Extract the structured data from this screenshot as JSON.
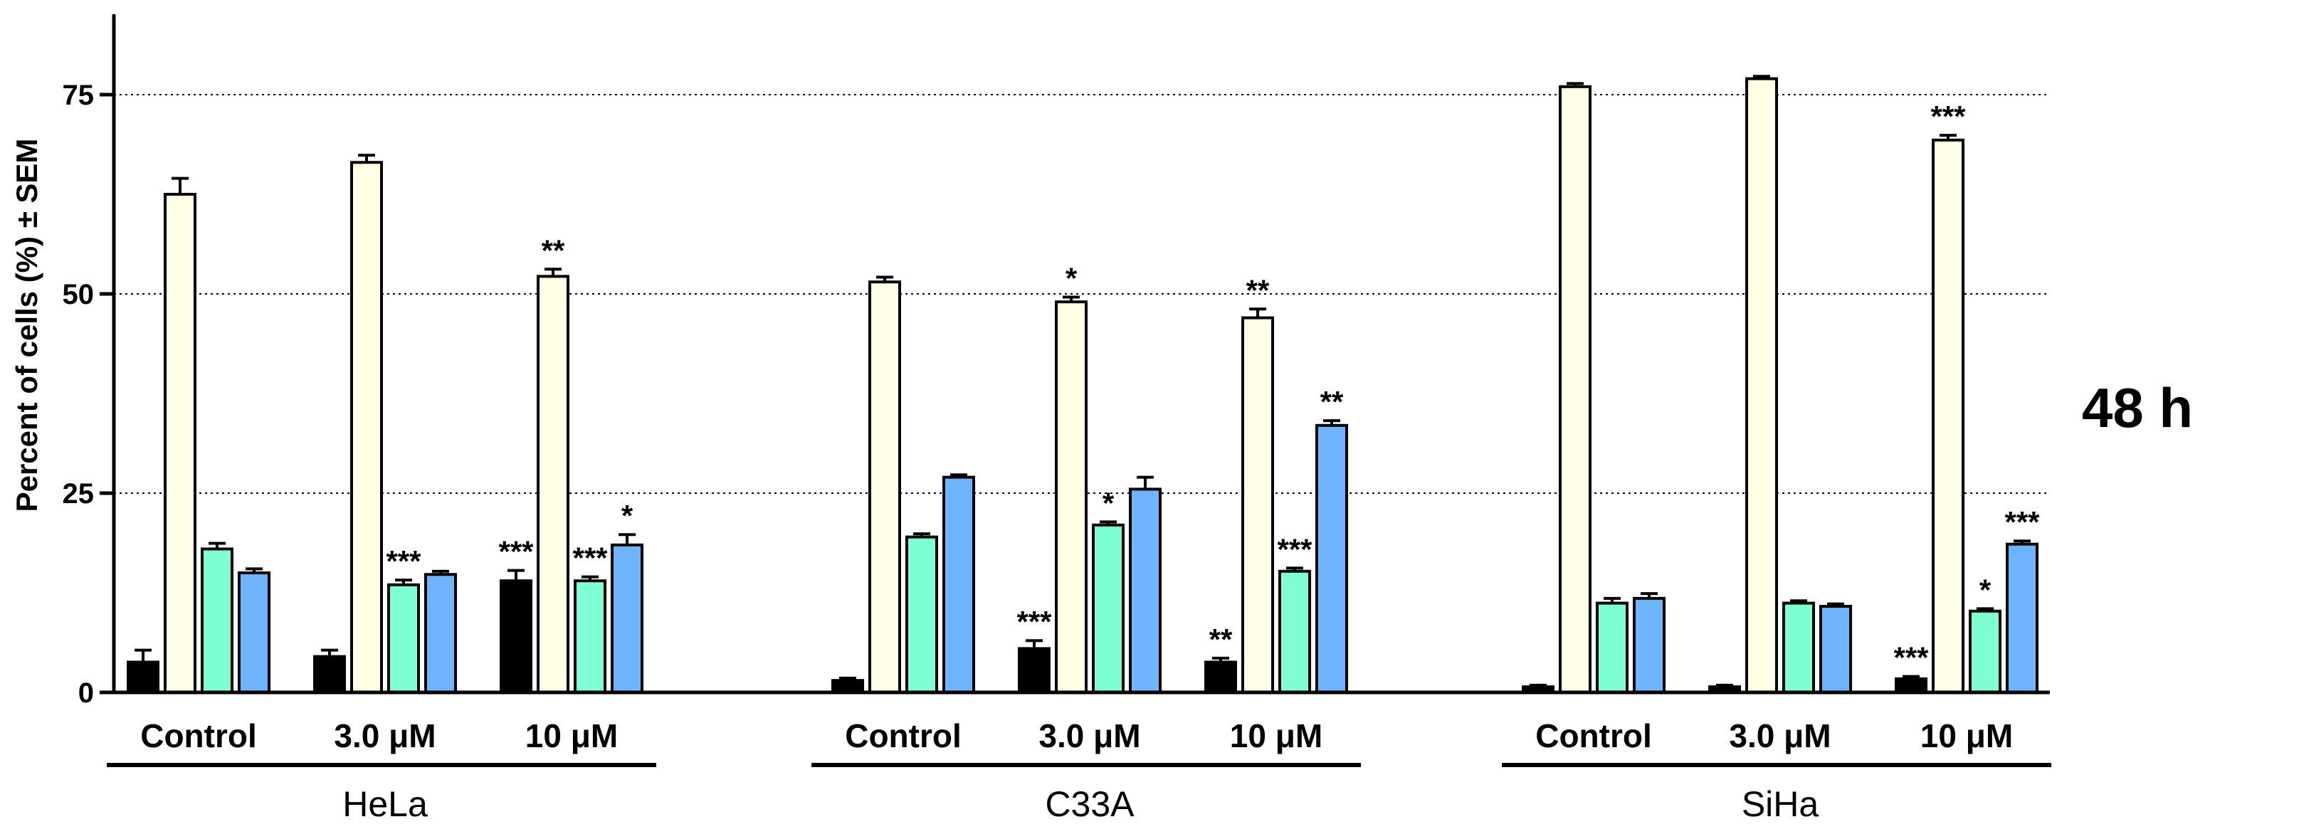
{
  "chart_data": {
    "type": "bar",
    "title": "",
    "xlabel": "",
    "ylabel": "Percent of cells (%) ± SEM",
    "ylim": [
      0,
      85
    ],
    "yticks": [
      0,
      25,
      50,
      75
    ],
    "grid": "horizontal dotted at 25, 50, 75",
    "side_label": "48 h",
    "series": [
      {
        "name": "series 1",
        "color": "#000000"
      },
      {
        "name": "series 2",
        "color": "#FFFFE6"
      },
      {
        "name": "series 3",
        "color": "#7FFFD4"
      },
      {
        "name": "series 4",
        "color": "#6EB4FF"
      }
    ],
    "groups": [
      {
        "name": "HeLa",
        "conditions": [
          {
            "label": "Control",
            "values": [
              3.8,
              62.5,
              18.0,
              15.0
            ],
            "errors": [
              1.5,
              2.0,
              0.7,
              0.5
            ],
            "sig": [
              "",
              "",
              "",
              ""
            ]
          },
          {
            "label": "3.0 μM",
            "values": [
              4.5,
              66.5,
              13.5,
              14.8
            ],
            "errors": [
              0.8,
              0.9,
              0.6,
              0.4
            ],
            "sig": [
              "",
              "",
              "***",
              ""
            ]
          },
          {
            "label": "10 μM",
            "values": [
              14.0,
              52.2,
              14.0,
              18.5
            ],
            "errors": [
              1.3,
              0.9,
              0.5,
              1.3
            ],
            "sig": [
              "***",
              "**",
              "***",
              "*"
            ]
          }
        ]
      },
      {
        "name": "C33A",
        "conditions": [
          {
            "label": "Control",
            "values": [
              1.5,
              51.5,
              19.5,
              27.0
            ],
            "errors": [
              0.3,
              0.6,
              0.4,
              0.3
            ],
            "sig": [
              "",
              "",
              "",
              ""
            ]
          },
          {
            "label": "3.0 μM",
            "values": [
              5.5,
              49.0,
              21.0,
              25.5
            ],
            "errors": [
              1.0,
              0.6,
              0.4,
              1.5
            ],
            "sig": [
              "***",
              "*",
              "*",
              ""
            ]
          },
          {
            "label": "10 μM",
            "values": [
              3.8,
              47.0,
              15.2,
              33.5
            ],
            "errors": [
              0.5,
              1.1,
              0.4,
              0.6
            ],
            "sig": [
              "**",
              "**",
              "***",
              "**"
            ]
          }
        ]
      },
      {
        "name": "SiHa",
        "conditions": [
          {
            "label": "Control",
            "values": [
              0.7,
              76.0,
              11.2,
              11.8
            ],
            "errors": [
              0.2,
              0.4,
              0.6,
              0.6
            ],
            "sig": [
              "",
              "",
              "",
              ""
            ]
          },
          {
            "label": "3.0 μM",
            "values": [
              0.7,
              77.0,
              11.2,
              10.8
            ],
            "errors": [
              0.2,
              0.3,
              0.3,
              0.3
            ],
            "sig": [
              "",
              "",
              "",
              ""
            ]
          },
          {
            "label": "10 μM",
            "values": [
              1.7,
              69.3,
              10.2,
              18.6
            ],
            "errors": [
              0.3,
              0.6,
              0.3,
              0.4
            ],
            "sig": [
              "***",
              "***",
              "*",
              "***"
            ]
          }
        ]
      }
    ]
  }
}
